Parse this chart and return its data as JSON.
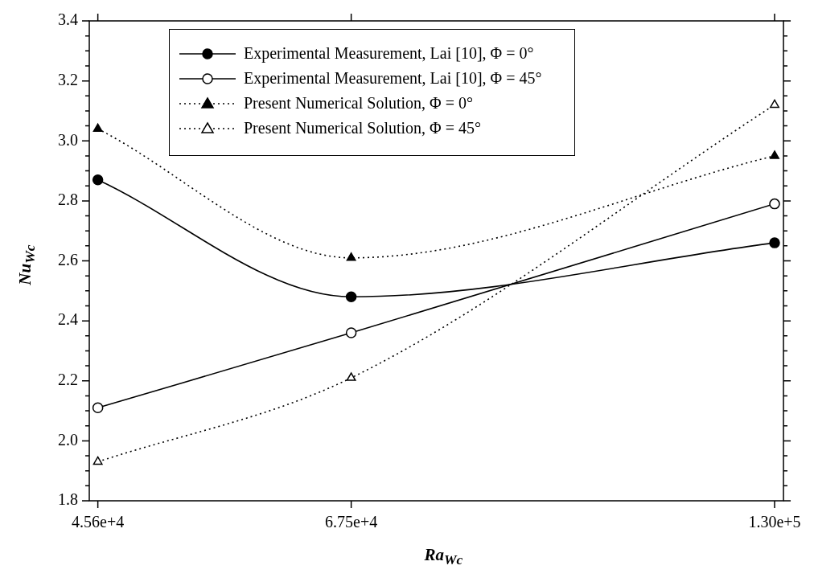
{
  "chart_data": {
    "type": "line",
    "xlabel": "Ra$_{Wc}$",
    "ylabel": "Nu$_{Wc}$",
    "log": "x",
    "x": [
      45600,
      67500,
      130000
    ],
    "xlim": [
      45000,
      131800
    ],
    "xticks": [
      {
        "value": 45600,
        "label": "4.56e+4"
      },
      {
        "value": 67500,
        "label": "6.75e+4"
      },
      {
        "value": 130000,
        "label": "1.30e+5"
      }
    ],
    "ylim": [
      1.8,
      3.4
    ],
    "yticks": [
      1.8,
      {
        "value": 1.85,
        "label": null
      },
      {
        "value": 1.9,
        "label": null
      },
      {
        "value": 1.95,
        "label": null
      },
      {
        "value": 2,
        "label": "2.0"
      },
      {
        "value": 2.05,
        "label": null
      },
      {
        "value": 2.1,
        "label": null
      },
      {
        "value": 2.15,
        "label": null
      },
      2.2,
      {
        "value": 2.25,
        "label": null
      },
      {
        "value": 2.3,
        "label": null
      },
      {
        "value": 2.35,
        "label": null
      },
      2.4,
      {
        "value": 2.45,
        "label": null
      },
      {
        "value": 2.5,
        "label": null
      },
      {
        "value": 2.55,
        "label": null
      },
      2.6,
      {
        "value": 2.65,
        "label": null
      },
      {
        "value": 2.7,
        "label": null
      },
      {
        "value": 2.75,
        "label": null
      },
      2.8,
      {
        "value": 2.85,
        "label": null
      },
      {
        "value": 2.9,
        "label": null
      },
      {
        "value": 2.95,
        "label": null
      },
      {
        "value": 3,
        "label": "3.0"
      },
      {
        "value": 3.05,
        "label": null
      },
      {
        "value": 3.1,
        "label": null
      },
      {
        "value": 3.15,
        "label": null
      },
      3.2,
      {
        "value": 3.25,
        "label": null
      },
      {
        "value": 3.3,
        "label": null
      },
      {
        "value": 3.35,
        "label": null
      },
      3.4
    ],
    "grid": false,
    "legend": "top",
    "series": [
      {
        "name": "Experimental Measurement, Lai [10], Φ = 0°",
        "color": "#000000",
        "values": [
          2.87,
          2.48,
          2.66
        ],
        "marker": "circle",
        "line_style": "solid"
      },
      {
        "name": "Experimental Measurement, Lai [10], Φ = 45°",
        "color": "#000000",
        "values": [
          2.11,
          2.36,
          2.79
        ],
        "colors": [
          "#ffffff",
          "#ffffff",
          "#ffffff"
        ],
        "marker": "circle",
        "line_style": "solid"
      },
      {
        "name": "Present Numerical Solution, Φ = 0°",
        "color": "#000000",
        "values": [
          3.04,
          2.61,
          2.95
        ],
        "marker": "triangle",
        "line_style": "dotted"
      },
      {
        "name": "Present Numerical Solution, Φ = 45°",
        "color": "#000000",
        "values": [
          1.93,
          2.21,
          3.12
        ],
        "colors": [
          "#ffffff",
          "#ffffff",
          "#ffffff"
        ],
        "marker": "triangle",
        "line_style": "dotted"
      }
    ]
  }
}
